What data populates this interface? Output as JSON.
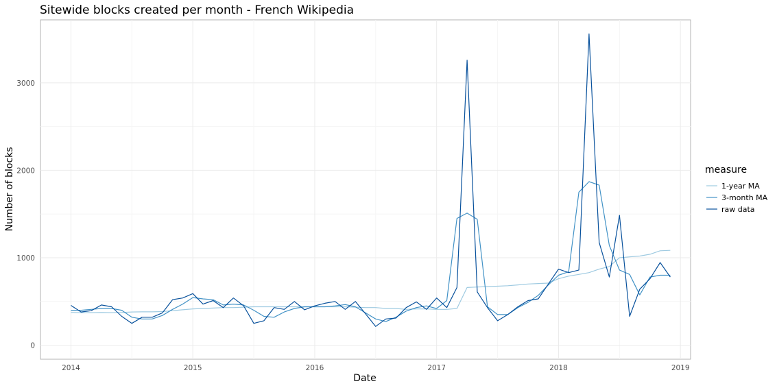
{
  "chart_data": {
    "type": "line",
    "title": "Sitewide blocks created per month - French Wikipedia",
    "xlabel": "Date",
    "ylabel": "Number of blocks",
    "x_ticks": [
      "2014",
      "2015",
      "2016",
      "2017",
      "2018",
      "2019"
    ],
    "y_ticks": [
      "0",
      "1000",
      "2000",
      "3000"
    ],
    "xlim": [
      "2013-10",
      "2019-02"
    ],
    "ylim": [
      -160,
      3720
    ],
    "grid": true,
    "legend": {
      "title": "measure",
      "position": "right"
    },
    "x": [
      "2014-01",
      "2014-02",
      "2014-03",
      "2014-04",
      "2014-05",
      "2014-06",
      "2014-07",
      "2014-08",
      "2014-09",
      "2014-10",
      "2014-11",
      "2014-12",
      "2015-01",
      "2015-02",
      "2015-03",
      "2015-04",
      "2015-05",
      "2015-06",
      "2015-07",
      "2015-08",
      "2015-09",
      "2015-10",
      "2015-11",
      "2015-12",
      "2016-01",
      "2016-02",
      "2016-03",
      "2016-04",
      "2016-05",
      "2016-06",
      "2016-07",
      "2016-08",
      "2016-09",
      "2016-10",
      "2016-11",
      "2016-12",
      "2017-01",
      "2017-02",
      "2017-03",
      "2017-04",
      "2017-05",
      "2017-06",
      "2017-07",
      "2017-08",
      "2017-09",
      "2017-10",
      "2017-11",
      "2017-12",
      "2018-01",
      "2018-02",
      "2018-03",
      "2018-04",
      "2018-05",
      "2018-06",
      "2018-07",
      "2018-08",
      "2018-09",
      "2018-10",
      "2018-11",
      "2018-12"
    ],
    "series": [
      {
        "name": "1-year MA",
        "color": "#9ecae1",
        "values": [
          375,
          372,
          372,
          374,
          372,
          374,
          380,
          382,
          382,
          385,
          395,
          405,
          415,
          420,
          425,
          430,
          430,
          435,
          440,
          440,
          440,
          440,
          440,
          440,
          440,
          440,
          440,
          440,
          435,
          430,
          430,
          420,
          420,
          410,
          415,
          415,
          410,
          410,
          420,
          660,
          665,
          670,
          675,
          680,
          690,
          700,
          705,
          710,
          760,
          790,
          810,
          830,
          870,
          900,
          1000,
          1010,
          1020,
          1040,
          1080,
          1085
        ]
      },
      {
        "name": "3-month MA",
        "color": "#4292c6",
        "values": [
          400,
          400,
          410,
          420,
          420,
          400,
          320,
          300,
          300,
          340,
          410,
          470,
          545,
          530,
          520,
          460,
          470,
          460,
          400,
          330,
          320,
          380,
          420,
          440,
          440,
          440,
          450,
          465,
          440,
          370,
          300,
          270,
          320,
          390,
          430,
          450,
          420,
          510,
          1450,
          1510,
          1440,
          440,
          350,
          350,
          430,
          490,
          570,
          690,
          800,
          840,
          1750,
          1870,
          1830,
          1140,
          860,
          810,
          575,
          780,
          800,
          800
        ]
      },
      {
        "name": "raw data",
        "color": "#08519c",
        "values": [
          455,
          380,
          395,
          460,
          440,
          330,
          250,
          320,
          320,
          370,
          520,
          540,
          590,
          470,
          510,
          430,
          540,
          450,
          250,
          280,
          430,
          410,
          500,
          405,
          450,
          480,
          500,
          410,
          500,
          360,
          215,
          300,
          310,
          430,
          495,
          410,
          540,
          430,
          660,
          3260,
          610,
          430,
          280,
          350,
          440,
          510,
          530,
          700,
          870,
          830,
          860,
          3560,
          1175,
          780,
          1485,
          330,
          640,
          760,
          945,
          780
        ]
      }
    ]
  }
}
